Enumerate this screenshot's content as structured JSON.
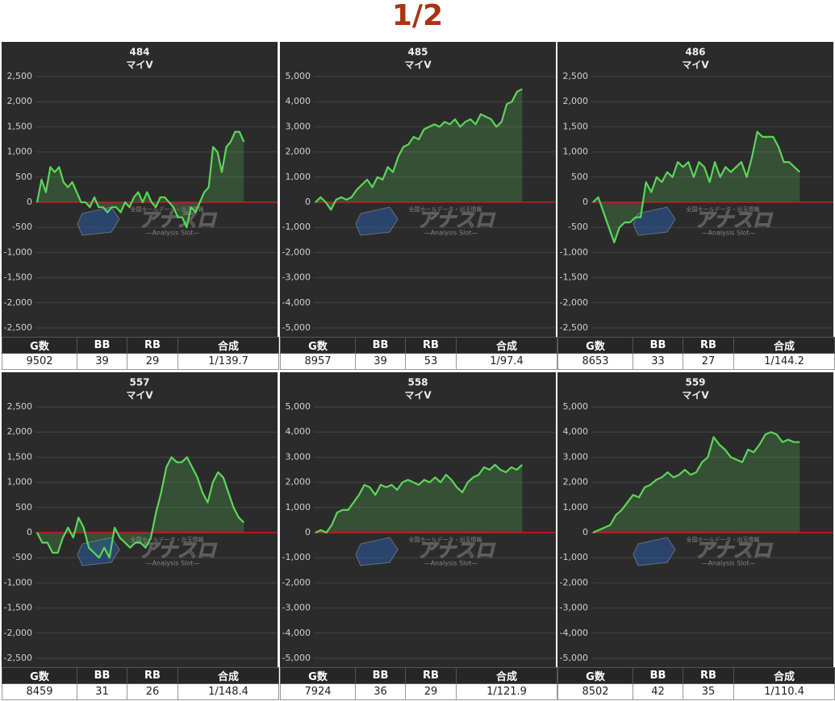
{
  "page_title": "1/2",
  "watermark": {
    "logo": "アナスロ",
    "tagline": "全国ホールデータ・出玉情報",
    "caption": "—Analysis Slot—"
  },
  "chart_data": [
    {
      "type": "line",
      "title": "484",
      "subtitle": "マイV",
      "ylim": [
        -2500,
        2500
      ],
      "yticks": [
        {
          "value": 2500,
          "label": "2,500"
        },
        {
          "value": 2000,
          "label": "2,000"
        },
        {
          "value": 1500,
          "label": "1,500"
        },
        {
          "value": 1000,
          "label": "1,000"
        },
        500,
        0,
        -500,
        {
          "value": -1000,
          "label": "-1,000"
        },
        {
          "value": -1500,
          "label": "-1,500"
        },
        {
          "value": -2000,
          "label": "-2,000"
        },
        {
          "value": -2500,
          "label": "-2,500"
        }
      ],
      "grid": true,
      "fill": true,
      "zero_line_color": "#c81e1e",
      "series": [
        {
          "color": "#5cd65a",
          "values": [
            0,
            450,
            200,
            700,
            600,
            700,
            400,
            300,
            400,
            200,
            0,
            0,
            -100,
            100,
            -100,
            -100,
            -200,
            -100,
            -100,
            -200,
            0,
            -100,
            100,
            200,
            0,
            200,
            0,
            -100,
            100,
            100,
            0,
            -100,
            -300,
            -300,
            -500,
            -100,
            -200,
            0,
            200,
            300,
            1100,
            1000,
            600,
            1100,
            1200,
            1400,
            1400,
            1200
          ]
        }
      ]
    },
    {
      "type": "line",
      "title": "485",
      "subtitle": "マイV",
      "ylim": [
        -5000,
        5000
      ],
      "yticks": [
        {
          "value": 5000,
          "label": "5,000"
        },
        {
          "value": 4000,
          "label": "4,000"
        },
        {
          "value": 3000,
          "label": "3,000"
        },
        {
          "value": 2000,
          "label": "2,000"
        },
        {
          "value": 1000,
          "label": "1,000"
        },
        0,
        {
          "value": -1000,
          "label": "-1,000"
        },
        {
          "value": -2000,
          "label": "-2,000"
        },
        {
          "value": -3000,
          "label": "-3,000"
        },
        {
          "value": -4000,
          "label": "-4,000"
        },
        {
          "value": -5000,
          "label": "-5,000"
        }
      ],
      "grid": true,
      "fill": true,
      "zero_line_color": "#c81e1e",
      "series": [
        {
          "color": "#5cd65a",
          "values": [
            0,
            200,
            0,
            -300,
            100,
            200,
            100,
            200,
            500,
            700,
            900,
            600,
            1000,
            900,
            1400,
            1200,
            1800,
            2200,
            2300,
            2600,
            2500,
            2900,
            3000,
            3100,
            3000,
            3200,
            3100,
            3300,
            3000,
            3200,
            3300,
            3100,
            3500,
            3400,
            3300,
            3000,
            3200,
            3900,
            4000,
            4400,
            4500
          ]
        }
      ]
    },
    {
      "type": "line",
      "title": "486",
      "subtitle": "マイV",
      "ylim": [
        -2500,
        2500
      ],
      "yticks": [
        {
          "value": 2500,
          "label": "2,500"
        },
        {
          "value": 2000,
          "label": "2,000"
        },
        {
          "value": 1500,
          "label": "1,500"
        },
        {
          "value": 1000,
          "label": "1,000"
        },
        500,
        0,
        -500,
        {
          "value": -1000,
          "label": "-1,000"
        },
        {
          "value": -1500,
          "label": "-1,500"
        },
        {
          "value": -2000,
          "label": "-2,000"
        },
        {
          "value": -2500,
          "label": "-2,500"
        }
      ],
      "grid": true,
      "fill": true,
      "zero_line_color": "#c81e1e",
      "series": [
        {
          "color": "#5cd65a",
          "values": [
            0,
            100,
            -200,
            -500,
            -800,
            -500,
            -400,
            -400,
            -300,
            -300,
            400,
            200,
            500,
            400,
            600,
            500,
            800,
            700,
            800,
            500,
            800,
            700,
            400,
            800,
            500,
            700,
            600,
            700,
            800,
            500,
            900,
            1400,
            1300,
            1300,
            1300,
            1100,
            800,
            800,
            700,
            600
          ]
        }
      ]
    },
    {
      "type": "line",
      "title": "557",
      "subtitle": "マイV",
      "ylim": [
        -2500,
        2500
      ],
      "yticks": [
        {
          "value": 2500,
          "label": "2,500"
        },
        {
          "value": 2000,
          "label": "2,000"
        },
        {
          "value": 1500,
          "label": "1,500"
        },
        {
          "value": 1000,
          "label": "1,000"
        },
        500,
        0,
        -500,
        {
          "value": -1000,
          "label": "-1,000"
        },
        {
          "value": -1500,
          "label": "-1,500"
        },
        {
          "value": -2000,
          "label": "-2,000"
        },
        {
          "value": -2500,
          "label": "-2,500"
        }
      ],
      "grid": true,
      "fill": true,
      "zero_line_color": "#c81e1e",
      "series": [
        {
          "color": "#5cd65a",
          "values": [
            0,
            -200,
            -200,
            -400,
            -400,
            -100,
            100,
            -100,
            300,
            100,
            -300,
            -400,
            -500,
            -300,
            -500,
            100,
            -100,
            -200,
            -300,
            -200,
            -200,
            -300,
            -100,
            400,
            800,
            1300,
            1500,
            1400,
            1400,
            1500,
            1300,
            1100,
            800,
            600,
            1000,
            1200,
            1100,
            800,
            500,
            300,
            200
          ]
        }
      ]
    },
    {
      "type": "line",
      "title": "558",
      "subtitle": "マイV",
      "ylim": [
        -5000,
        5000
      ],
      "yticks": [
        {
          "value": 5000,
          "label": "5,000"
        },
        {
          "value": 4000,
          "label": "4,000"
        },
        {
          "value": 3000,
          "label": "3,000"
        },
        {
          "value": 2000,
          "label": "2,000"
        },
        {
          "value": 1000,
          "label": "1,000"
        },
        0,
        {
          "value": -1000,
          "label": "-1,000"
        },
        {
          "value": -2000,
          "label": "-2,000"
        },
        {
          "value": -3000,
          "label": "-3,000"
        },
        {
          "value": -4000,
          "label": "-4,000"
        },
        {
          "value": -5000,
          "label": "-5,000"
        }
      ],
      "grid": true,
      "fill": true,
      "zero_line_color": "#c81e1e",
      "series": [
        {
          "color": "#5cd65a",
          "values": [
            0,
            100,
            0,
            300,
            800,
            900,
            900,
            1200,
            1500,
            1900,
            1800,
            1500,
            1900,
            1800,
            1900,
            1700,
            2000,
            2100,
            2000,
            1900,
            2100,
            2000,
            2200,
            2000,
            2300,
            2100,
            1800,
            1600,
            2000,
            2200,
            2300,
            2600,
            2500,
            2700,
            2500,
            2400,
            2600,
            2500,
            2700
          ]
        }
      ]
    },
    {
      "type": "line",
      "title": "559",
      "subtitle": "マイV",
      "ylim": [
        -5000,
        5000
      ],
      "yticks": [
        {
          "value": 5000,
          "label": "5,000"
        },
        {
          "value": 4000,
          "label": "4,000"
        },
        {
          "value": 3000,
          "label": "3,000"
        },
        {
          "value": 2000,
          "label": "2,000"
        },
        {
          "value": 1000,
          "label": "1,000"
        },
        0,
        {
          "value": -1000,
          "label": "-1,000"
        },
        {
          "value": -2000,
          "label": "-2,000"
        },
        {
          "value": -3000,
          "label": "-3,000"
        },
        {
          "value": -4000,
          "label": "-4,000"
        },
        {
          "value": -5000,
          "label": "-5,000"
        }
      ],
      "grid": true,
      "fill": true,
      "zero_line_color": "#c81e1e",
      "series": [
        {
          "color": "#5cd65a",
          "values": [
            0,
            100,
            200,
            300,
            700,
            900,
            1200,
            1500,
            1400,
            1800,
            1900,
            2100,
            2200,
            2400,
            2200,
            2300,
            2500,
            2300,
            2400,
            2800,
            3000,
            3800,
            3500,
            3300,
            3000,
            2900,
            2800,
            3300,
            3200,
            3500,
            3900,
            4000,
            3900,
            3600,
            3700,
            3600,
            3600
          ]
        }
      ]
    }
  ],
  "tables": [
    {
      "header": [
        "G数",
        "BB",
        "RB",
        "合成"
      ],
      "rows": [
        [
          9502,
          39,
          29,
          "1/139.7"
        ]
      ]
    },
    {
      "header": [
        "G数",
        "BB",
        "RB",
        "合成"
      ],
      "rows": [
        [
          8957,
          39,
          53,
          "1/97.4"
        ]
      ]
    },
    {
      "header": [
        "G数",
        "BB",
        "RB",
        "合成"
      ],
      "rows": [
        [
          8653,
          33,
          27,
          "1/144.2"
        ]
      ]
    },
    {
      "header": [
        "G数",
        "BB",
        "RB",
        "合成"
      ],
      "rows": [
        [
          8459,
          31,
          26,
          "1/148.4"
        ]
      ]
    },
    {
      "header": [
        "G数",
        "BB",
        "RB",
        "合成"
      ],
      "rows": [
        [
          7924,
          36,
          29,
          "1/121.9"
        ]
      ]
    },
    {
      "header": [
        "G数",
        "BB",
        "RB",
        "合成"
      ],
      "rows": [
        [
          8502,
          42,
          35,
          "1/110.4"
        ]
      ]
    }
  ]
}
